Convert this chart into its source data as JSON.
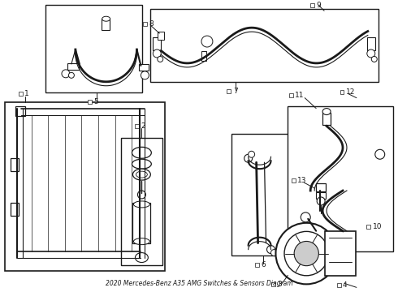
{
  "title": "2020 Mercedes-Benz A35 AMG Switches & Sensors Diagram",
  "bg_color": "#ffffff",
  "line_color": "#1a1a1a",
  "box_color": "#1a1a1a",
  "label_color": "#1a1a1a",
  "figw": 4.9,
  "figh": 3.6,
  "dpi": 100
}
